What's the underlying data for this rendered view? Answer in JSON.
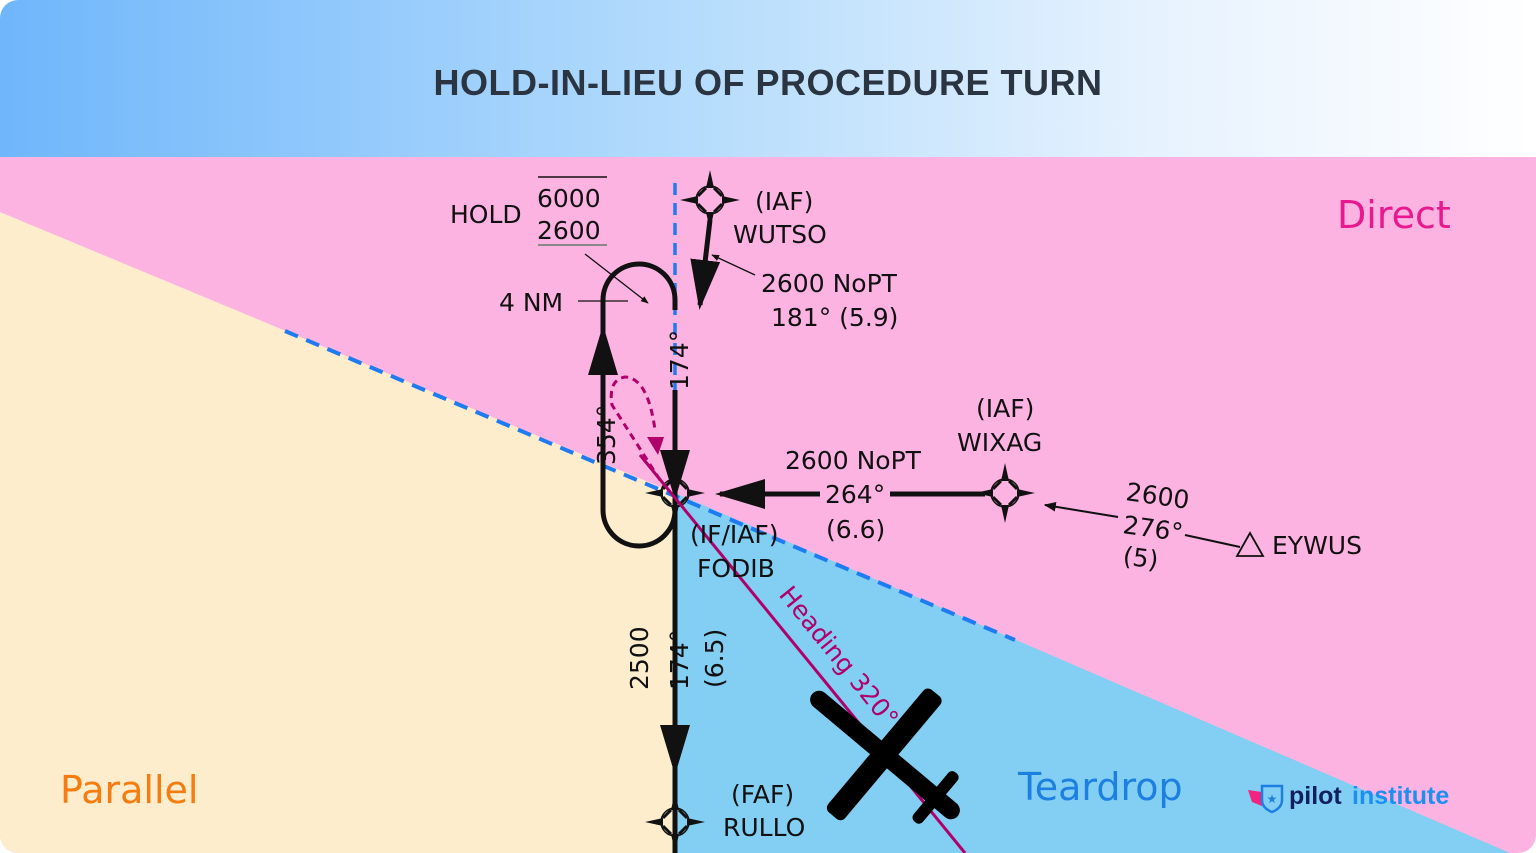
{
  "title": "HOLD-IN-LIEU OF PROCEDURE TURN",
  "zones": {
    "direct": "Direct",
    "parallel": "Parallel",
    "teardrop": "Teardrop"
  },
  "colors": {
    "direct": "#fdb3e1",
    "parallel": "#fdedcd",
    "teardrop": "#82cff3",
    "boundary": "#1f7bf0",
    "heading": "#b0006a",
    "direct_text": "#e8198f",
    "parallel_text": "#f57c10",
    "teardrop_text": "#1d7fe0"
  },
  "hold": {
    "label": "HOLD",
    "max_alt": "6000",
    "min_alt": "2600",
    "leg": "4 NM",
    "inbound": "174°",
    "outbound": "354°"
  },
  "fixes": {
    "wutso": {
      "role": "(IAF)",
      "name": "WUTSO",
      "alt": "2600 NoPT",
      "course": "181° (5.9)"
    },
    "wixag": {
      "role": "(IAF)",
      "name": "WIXAG",
      "alt": "2600 NoPT",
      "course": "264°",
      "dist": "(6.6)"
    },
    "eywus": {
      "name": "EYWUS",
      "alt": "2600",
      "course": "276°",
      "dist": "(5)"
    },
    "fodib": {
      "role": "(IF/IAF)",
      "name": "FODIB",
      "alt": "2500",
      "course": "174°",
      "dist": "(6.5)"
    },
    "rullo": {
      "role": "(FAF)",
      "name": "RULLO"
    }
  },
  "heading": "Heading 320°",
  "logo": {
    "part1": "pilot",
    "part2": "institute"
  }
}
